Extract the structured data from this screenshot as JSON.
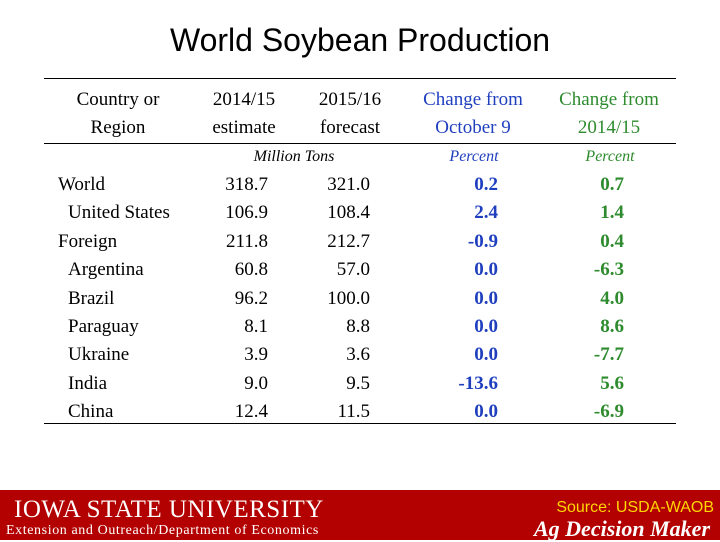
{
  "title": "World Soybean Production",
  "table": {
    "headers": [
      [
        "Country or",
        "Region"
      ],
      [
        "2014/15",
        "estimate"
      ],
      [
        "2015/16",
        "forecast"
      ],
      [
        "Change from",
        "October 9"
      ],
      [
        "Change from",
        "2014/15"
      ]
    ],
    "units": {
      "tons": "Million Tons",
      "pct1": "Percent",
      "pct2": "Percent"
    },
    "rows": [
      {
        "region": "World",
        "est": "318.7",
        "fcst": "321.0",
        "chg_oct": "0.2",
        "chg_yr": "0.7"
      },
      {
        "region": "United States",
        "est": "106.9",
        "fcst": "108.4",
        "chg_oct": "2.4",
        "chg_yr": "1.4"
      },
      {
        "region": "Foreign",
        "est": "211.8",
        "fcst": "212.7",
        "chg_oct": "-0.9",
        "chg_yr": "0.4"
      },
      {
        "region": "Argentina",
        "est": "60.8",
        "fcst": "57.0",
        "chg_oct": "0.0",
        "chg_yr": "-6.3"
      },
      {
        "region": "Brazil",
        "est": "96.2",
        "fcst": "100.0",
        "chg_oct": "0.0",
        "chg_yr": "4.0"
      },
      {
        "region": "Paraguay",
        "est": "8.1",
        "fcst": "8.8",
        "chg_oct": "0.0",
        "chg_yr": "8.6"
      },
      {
        "region": "Ukraine",
        "est": "3.9",
        "fcst": "3.6",
        "chg_oct": "0.0",
        "chg_yr": "-7.7"
      },
      {
        "region": "India",
        "est": "9.0",
        "fcst": "9.5",
        "chg_oct": "-13.6",
        "chg_yr": "5.6"
      },
      {
        "region": "China",
        "est": "12.4",
        "fcst": "11.5",
        "chg_oct": "0.0",
        "chg_yr": "-6.9"
      }
    ]
  },
  "footer": {
    "university": "Iowa State University",
    "department": "Extension and Outreach/Department of Economics",
    "source": "Source: USDA-WAOB",
    "program": "Ag Decision Maker"
  },
  "colors": {
    "blue": "#1f3fbf",
    "green": "#2e8b2e",
    "footer_red": "#b30000",
    "source_yellow": "#ffd700"
  }
}
